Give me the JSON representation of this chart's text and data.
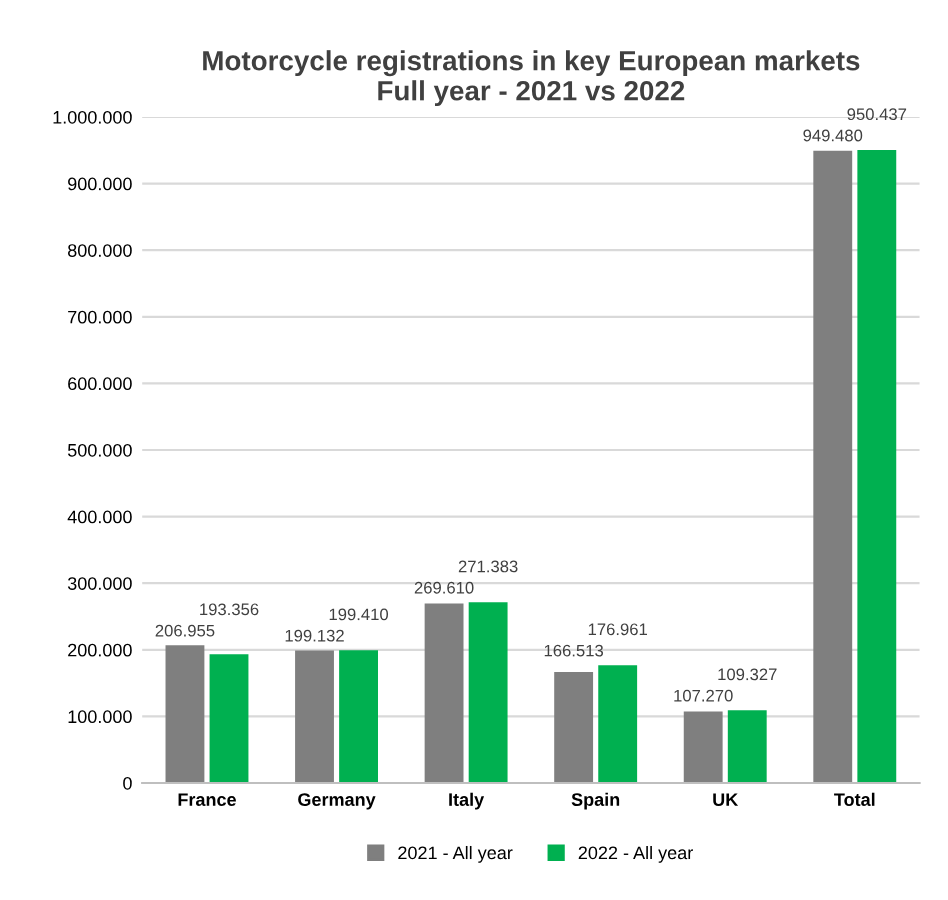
{
  "chart_data": {
    "type": "bar",
    "title": "Motorcycle registrations in key European markets\nFull year - 2021 vs 2022",
    "categories": [
      "France",
      "Germany",
      "Italy",
      "Spain",
      "UK",
      "Total"
    ],
    "series": [
      {
        "name": "2021 - All year",
        "color": "#7f7f7f",
        "values": [
          206955,
          199132,
          269610,
          166513,
          107270,
          949480
        ],
        "value_labels": [
          "206.955",
          "199.132",
          "269.610",
          "166.513",
          "107.270",
          "949.480"
        ]
      },
      {
        "name": "2022 - All year",
        "color": "#00b050",
        "values": [
          193356,
          199410,
          271383,
          176961,
          109327,
          950437
        ],
        "value_labels": [
          "193.356",
          "199.410",
          "271.383",
          "176.961",
          "109.327",
          "950.437"
        ]
      }
    ],
    "ylim": [
      0,
      1000000
    ],
    "yticks": [
      0,
      {
        "value": 100000,
        "label": "100.000"
      },
      {
        "value": 200000,
        "label": "200.000"
      },
      {
        "value": 300000,
        "label": "300.000"
      },
      {
        "value": 400000,
        "label": "400.000"
      },
      {
        "value": 500000,
        "label": "500.000"
      },
      {
        "value": 600000,
        "label": "600.000"
      },
      {
        "value": 700000,
        "label": "700.000"
      },
      {
        "value": 800000,
        "label": "800.000"
      },
      {
        "value": 900000,
        "label": "900.000"
      },
      {
        "value": 1000000,
        "label": "1.000.000"
      }
    ],
    "grid": "y",
    "legend": "bottom"
  }
}
